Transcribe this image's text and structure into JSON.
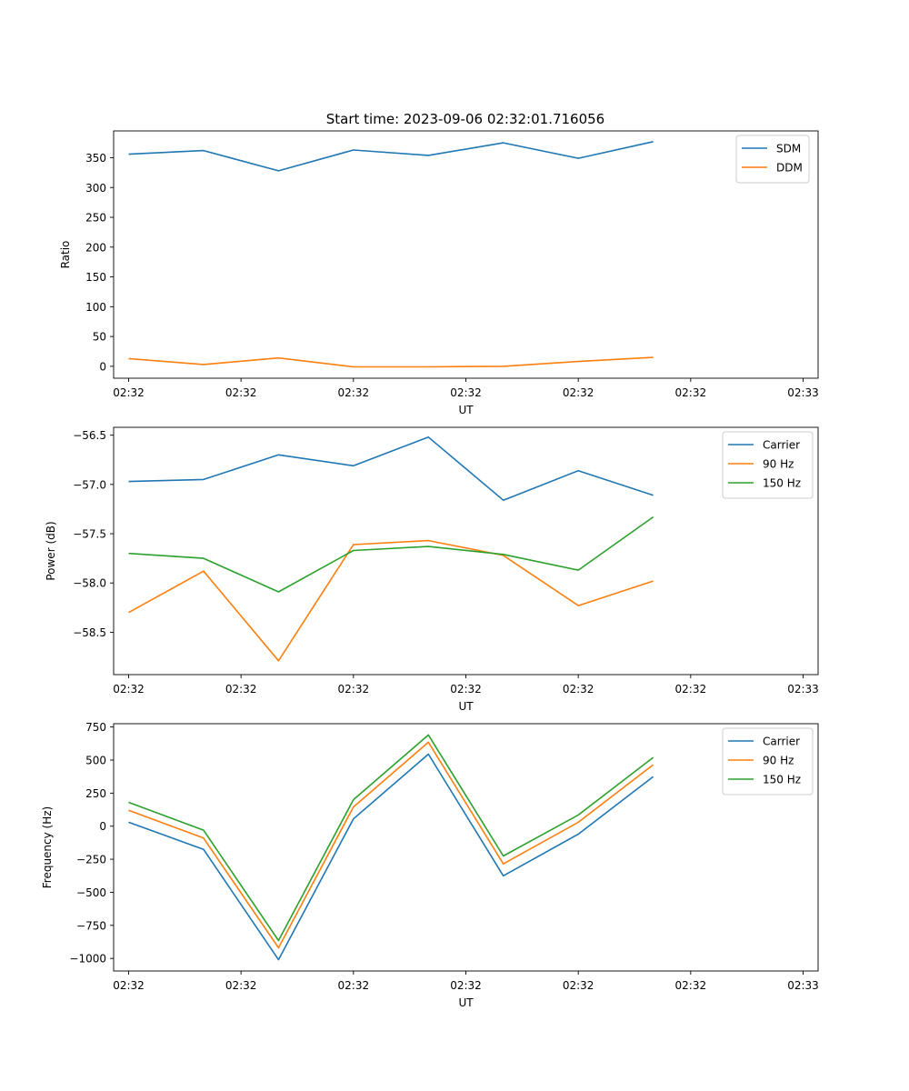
{
  "figure": {
    "title": "Start time: 2023-09-06 02:32:01.716056"
  },
  "chart_data": [
    {
      "type": "line",
      "title": "Start time: 2023-09-06 02:32:01.716056",
      "xlabel": "UT",
      "ylabel": "Ratio",
      "x": [
        1,
        2,
        3,
        4,
        5,
        6,
        7,
        8
      ],
      "xlim": [
        0.8,
        10.2
      ],
      "xticks": [
        1,
        2.5,
        4,
        5.5,
        7,
        8.5,
        10
      ],
      "xtick_labels": [
        "02:32",
        "02:32",
        "02:32",
        "02:32",
        "02:32",
        "02:32",
        "02:33"
      ],
      "ylim": [
        -20,
        395
      ],
      "yticks": [
        0,
        50,
        100,
        150,
        200,
        250,
        300,
        350
      ],
      "ytick_labels": [
        "0",
        "50",
        "100",
        "150",
        "200",
        "250",
        "300",
        "350"
      ],
      "legend": "top-right",
      "series": [
        {
          "name": "SDM",
          "color": "#1f77b4",
          "values": [
            356,
            362,
            328,
            363,
            354,
            375,
            349,
            377
          ]
        },
        {
          "name": "DDM",
          "color": "#ff7f0e",
          "values": [
            13,
            3,
            14,
            -1,
            -1,
            0,
            8,
            15
          ]
        }
      ]
    },
    {
      "type": "line",
      "title": "",
      "xlabel": "UT",
      "ylabel": "Power (dB)",
      "x": [
        1,
        2,
        3,
        4,
        5,
        6,
        7,
        8
      ],
      "xlim": [
        0.8,
        10.2
      ],
      "xticks": [
        1,
        2.5,
        4,
        5.5,
        7,
        8.5,
        10
      ],
      "xtick_labels": [
        "02:32",
        "02:32",
        "02:32",
        "02:32",
        "02:32",
        "02:32",
        "02:33"
      ],
      "ylim": [
        -58.93,
        -56.42
      ],
      "yticks": [
        -58.5,
        -58.0,
        -57.5,
        -57.0,
        -56.5
      ],
      "ytick_labels": [
        "−58.5",
        "−58.0",
        "−57.5",
        "−57.0",
        "−56.5"
      ],
      "legend": "top-right",
      "series": [
        {
          "name": "Carrier",
          "color": "#1f77b4",
          "values": [
            -56.97,
            -56.95,
            -56.7,
            -56.81,
            -56.52,
            -57.16,
            -56.86,
            -57.11
          ]
        },
        {
          "name": "90 Hz",
          "color": "#ff7f0e",
          "values": [
            -58.3,
            -57.88,
            -58.79,
            -57.61,
            -57.57,
            -57.72,
            -58.23,
            -57.98
          ]
        },
        {
          "name": "150 Hz",
          "color": "#2ca02c",
          "values": [
            -57.7,
            -57.75,
            -58.09,
            -57.67,
            -57.63,
            -57.71,
            -57.87,
            -57.33
          ]
        }
      ]
    },
    {
      "type": "line",
      "title": "",
      "xlabel": "UT",
      "ylabel": "Frequency (Hz)",
      "x": [
        1,
        2,
        3,
        4,
        5,
        6,
        7,
        8
      ],
      "xlim": [
        0.8,
        10.2
      ],
      "xticks": [
        1,
        2.5,
        4,
        5.5,
        7,
        8.5,
        10
      ],
      "xtick_labels": [
        "02:32",
        "02:32",
        "02:32",
        "02:32",
        "02:32",
        "02:32",
        "02:33"
      ],
      "ylim": [
        -1095,
        775
      ],
      "yticks": [
        -1000,
        -750,
        -500,
        -250,
        0,
        250,
        500,
        750
      ],
      "ytick_labels": [
        "−1000",
        "−750",
        "−500",
        "−250",
        "0",
        "250",
        "500",
        "750"
      ],
      "legend": "top-right",
      "series": [
        {
          "name": "Carrier",
          "color": "#1f77b4",
          "values": [
            30,
            -175,
            -1010,
            55,
            545,
            -375,
            -60,
            375
          ]
        },
        {
          "name": "90 Hz",
          "color": "#ff7f0e",
          "values": [
            120,
            -90,
            -920,
            145,
            635,
            -285,
            30,
            465
          ]
        },
        {
          "name": "150 Hz",
          "color": "#2ca02c",
          "values": [
            180,
            -30,
            -865,
            200,
            690,
            -225,
            85,
            520
          ]
        }
      ]
    }
  ]
}
